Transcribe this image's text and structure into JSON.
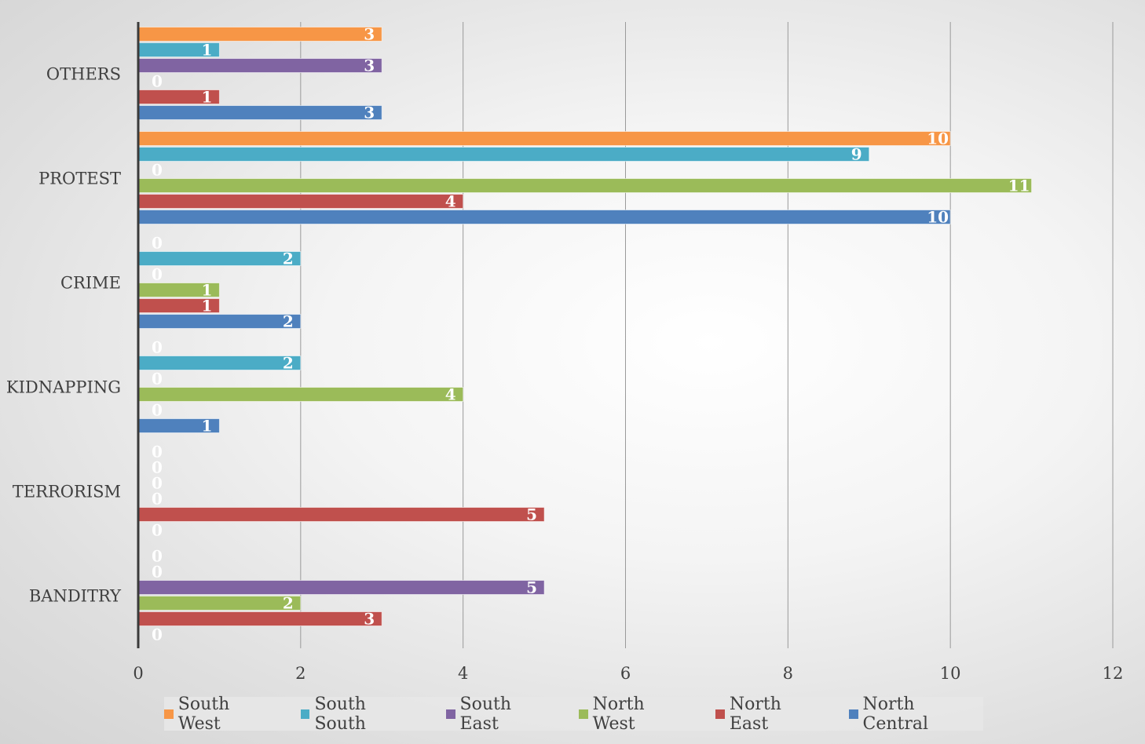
{
  "chart_data": {
    "type": "bar",
    "orientation": "horizontal",
    "categories": [
      "OTHERS",
      "PROTEST",
      "CRIME",
      "KIDNAPPING",
      "TERRORISM",
      "BANDITRY"
    ],
    "series": [
      {
        "name": "South West",
        "color": "#f79646",
        "values": [
          3,
          10,
          0,
          0,
          0,
          0
        ]
      },
      {
        "name": "South South",
        "color": "#4bacc6",
        "values": [
          1,
          9,
          2,
          2,
          0,
          0
        ]
      },
      {
        "name": "South East",
        "color": "#8064a2",
        "values": [
          3,
          0,
          0,
          0,
          0,
          5
        ]
      },
      {
        "name": "North West",
        "color": "#9bbb59",
        "values": [
          0,
          11,
          1,
          4,
          0,
          2
        ]
      },
      {
        "name": "North East",
        "color": "#c0504d",
        "values": [
          1,
          4,
          1,
          0,
          5,
          3
        ]
      },
      {
        "name": "North Central",
        "color": "#4f81bd",
        "values": [
          3,
          10,
          2,
          1,
          0,
          0
        ]
      }
    ],
    "xlim": [
      0,
      12
    ],
    "xticks": [
      "0",
      "2",
      "4",
      "6",
      "8",
      "10",
      "12"
    ],
    "grid": true,
    "legend": "bottom",
    "title": "",
    "xlabel": "",
    "ylabel": ""
  }
}
